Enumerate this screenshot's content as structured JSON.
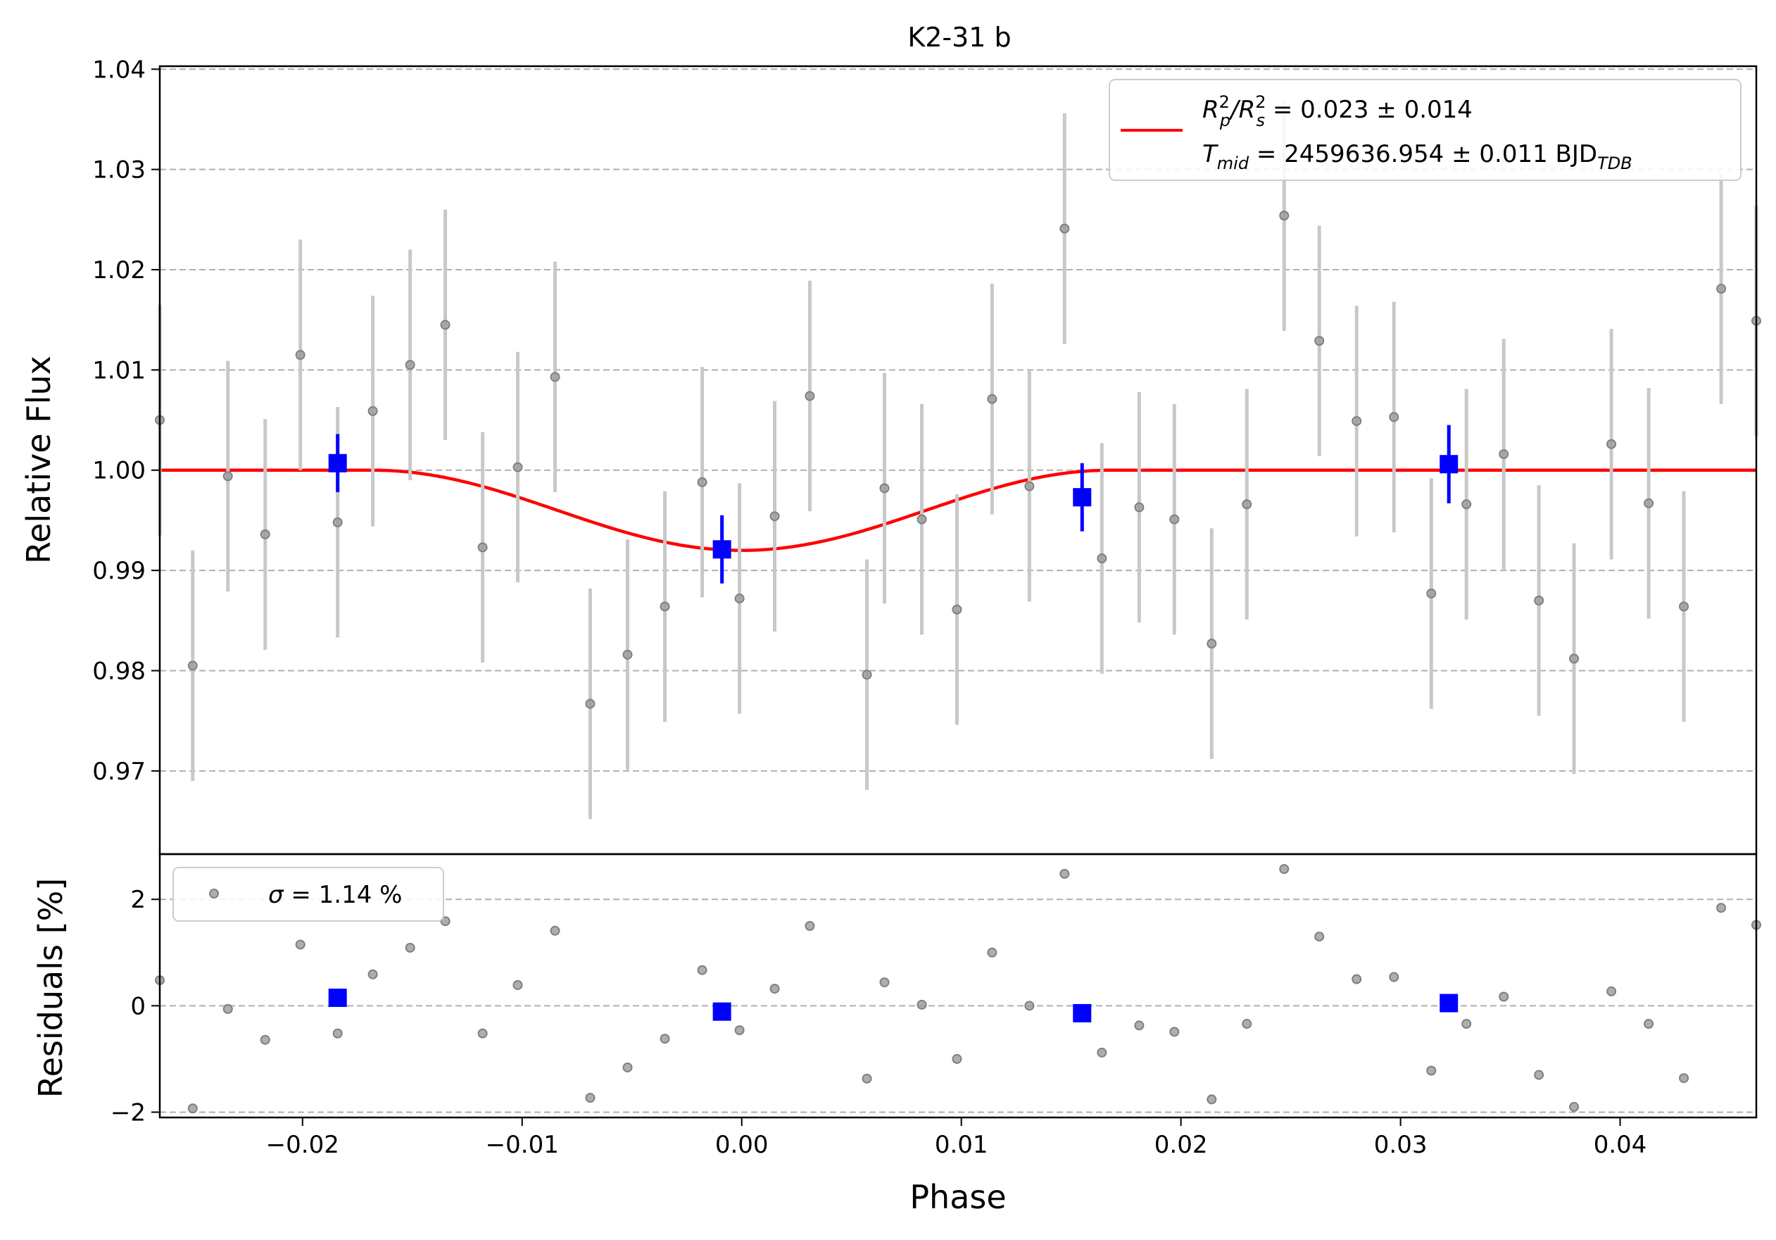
{
  "chart_data": {
    "title": "K2-31 b",
    "xlabel": "Phase",
    "xlim": [
      -0.0265,
      0.0462
    ],
    "xticks": [
      -0.02,
      -0.01,
      0.0,
      0.01,
      0.02,
      0.03,
      0.04
    ],
    "xtick_labels": [
      "−0.02",
      "−0.01",
      "0.00",
      "0.01",
      "0.02",
      "0.03",
      "0.04"
    ],
    "grid": "horizontal dashed",
    "panels": [
      {
        "id": "flux",
        "type": "scatter",
        "ylabel": "Relative Flux",
        "ylim": [
          0.9617,
          1.0403
        ],
        "yticks": [
          0.97,
          0.98,
          0.99,
          1.0,
          1.01,
          1.02,
          1.03,
          1.04
        ],
        "ytick_labels": [
          "0.97",
          "0.98",
          "0.99",
          "1.00",
          "1.01",
          "1.02",
          "1.03",
          "1.04"
        ],
        "legend": {
          "position": "top-right",
          "line1_parts": [
            "R",
            "2",
            "p",
            "/R",
            "2",
            "s",
            " = 0.023 ± 0.014"
          ],
          "line2_parts": [
            "T",
            "mid",
            " = 2459636.954 ± 0.011 BJD",
            "TDB"
          ]
        },
        "raw": [
          [
            -0.0265,
            1.005,
            0.0115
          ],
          [
            -0.025,
            0.9805,
            0.0115
          ],
          [
            -0.0234,
            0.9994,
            0.0115
          ],
          [
            -0.0217,
            0.9936,
            0.0115
          ],
          [
            -0.0201,
            1.0115,
            0.0115
          ],
          [
            -0.0184,
            0.9948,
            0.0115
          ],
          [
            -0.0168,
            1.0059,
            0.0115
          ],
          [
            -0.0151,
            1.0105,
            0.0115
          ],
          [
            -0.0135,
            1.0145,
            0.0115
          ],
          [
            -0.0118,
            0.9923,
            0.0115
          ],
          [
            -0.0102,
            1.0003,
            0.0115
          ],
          [
            -0.0085,
            1.0093,
            0.0115
          ],
          [
            -0.0069,
            0.9767,
            0.0115
          ],
          [
            -0.0052,
            0.9816,
            0.0115
          ],
          [
            -0.0035,
            0.9864,
            0.0115
          ],
          [
            -0.0018,
            0.9988,
            0.0115
          ],
          [
            -0.0001,
            0.9872,
            0.0115
          ],
          [
            0.0015,
            0.9954,
            0.0115
          ],
          [
            0.0031,
            1.0074,
            0.0115
          ],
          [
            0.0057,
            0.9796,
            0.0115
          ],
          [
            0.0065,
            0.9982,
            0.0115
          ],
          [
            0.0082,
            0.9951,
            0.0115
          ],
          [
            0.0098,
            0.9861,
            0.0115
          ],
          [
            0.0114,
            1.0071,
            0.0115
          ],
          [
            0.0131,
            0.9984,
            0.0115
          ],
          [
            0.0147,
            1.0241,
            0.0115
          ],
          [
            0.0164,
            0.9912,
            0.0115
          ],
          [
            0.0181,
            0.9963,
            0.0115
          ],
          [
            0.0197,
            0.9951,
            0.0115
          ],
          [
            0.0214,
            0.9827,
            0.0115
          ],
          [
            0.023,
            0.9966,
            0.0115
          ],
          [
            0.0247,
            1.0254,
            0.0115
          ],
          [
            0.0263,
            1.0129,
            0.0115
          ],
          [
            0.028,
            1.0049,
            0.0115
          ],
          [
            0.0297,
            1.0053,
            0.0115
          ],
          [
            0.0314,
            0.9877,
            0.0115
          ],
          [
            0.033,
            0.9966,
            0.0115
          ],
          [
            0.0347,
            1.0016,
            0.0115
          ],
          [
            0.0363,
            0.987,
            0.0115
          ],
          [
            0.0379,
            0.9812,
            0.0115
          ],
          [
            0.0396,
            1.0026,
            0.0115
          ],
          [
            0.0413,
            0.9967,
            0.0115
          ],
          [
            0.0429,
            0.9864,
            0.0115
          ],
          [
            0.0446,
            1.0181,
            0.0115
          ],
          [
            0.0462,
            1.0149,
            0.0115
          ]
        ],
        "binned": [
          [
            -0.0184,
            1.0007,
            0.0029
          ],
          [
            -0.0009,
            0.9921,
            0.0034
          ],
          [
            0.0155,
            0.9973,
            0.0034
          ],
          [
            0.0322,
            1.0006,
            0.0039
          ]
        ],
        "model": {
          "t0": 0.0,
          "depth": 0.008,
          "half_duration": 0.0168,
          "baseline": 1.0
        }
      },
      {
        "id": "residuals",
        "type": "scatter",
        "ylabel": "Residuals [%]",
        "ylim": [
          -2.1,
          2.85
        ],
        "yticks": [
          -2,
          0,
          2
        ],
        "ytick_labels": [
          "−2",
          "0",
          "2"
        ],
        "legend": {
          "position": "top-left",
          "label_symbol": "σ",
          "label_text": " = 1.14 %"
        },
        "raw": [
          [
            -0.0265,
            0.48
          ],
          [
            -0.025,
            -1.93
          ],
          [
            -0.0234,
            -0.06
          ],
          [
            -0.0217,
            -0.64
          ],
          [
            -0.0201,
            1.15
          ],
          [
            -0.0184,
            -0.52
          ],
          [
            -0.0168,
            0.59
          ],
          [
            -0.0151,
            1.09
          ],
          [
            -0.0135,
            1.59
          ],
          [
            -0.0118,
            -0.52
          ],
          [
            -0.0102,
            0.39
          ],
          [
            -0.0085,
            1.41
          ],
          [
            -0.0069,
            -1.73
          ],
          [
            -0.0052,
            -1.16
          ],
          [
            -0.0035,
            -0.62
          ],
          [
            -0.0018,
            0.67
          ],
          [
            -0.0001,
            -0.46
          ],
          [
            0.0015,
            0.32
          ],
          [
            0.0031,
            1.5
          ],
          [
            0.0057,
            -1.37
          ],
          [
            0.0065,
            0.44
          ],
          [
            0.0082,
            0.02
          ],
          [
            0.0098,
            -1.0
          ],
          [
            0.0114,
            1.0
          ],
          [
            0.0131,
            0.0
          ],
          [
            0.0147,
            2.48
          ],
          [
            0.0164,
            -0.88
          ],
          [
            0.0181,
            -0.37
          ],
          [
            0.0197,
            -0.49
          ],
          [
            0.0214,
            -1.76
          ],
          [
            0.023,
            -0.34
          ],
          [
            0.0247,
            2.57
          ],
          [
            0.0263,
            1.3
          ],
          [
            0.028,
            0.5
          ],
          [
            0.0297,
            0.54
          ],
          [
            0.0314,
            -1.22
          ],
          [
            0.033,
            -0.34
          ],
          [
            0.0347,
            0.17
          ],
          [
            0.0363,
            -1.3
          ],
          [
            0.0379,
            -1.9
          ],
          [
            0.0396,
            0.27
          ],
          [
            0.0413,
            -0.34
          ],
          [
            0.0429,
            -1.36
          ],
          [
            0.0446,
            1.84
          ],
          [
            0.0462,
            1.52
          ]
        ],
        "binned": [
          [
            -0.0184,
            0.15
          ],
          [
            -0.0009,
            -0.11
          ],
          [
            0.0155,
            -0.14
          ],
          [
            0.0322,
            0.05
          ]
        ]
      }
    ],
    "colors": {
      "model": "#ff0000",
      "binned": "#0000ff",
      "raw_point": "#808080",
      "raw_errorbar": "#c8c8c8",
      "grid": "#b0b0b0"
    }
  }
}
